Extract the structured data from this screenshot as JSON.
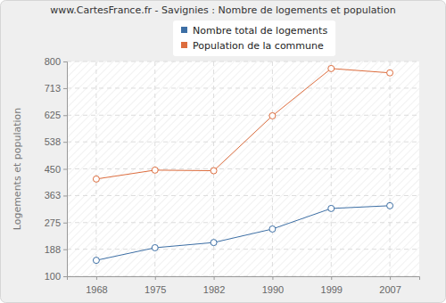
{
  "chart_data": {
    "type": "line",
    "title": "www.CartesFrance.fr - Savignies : Nombre de logements et population",
    "y_label": "Logements et population",
    "categories": [
      "1968",
      "1975",
      "1982",
      "1990",
      "1999",
      "2007"
    ],
    "series": [
      {
        "name": "Nombre total de logements",
        "color": "#3d6fa5",
        "marker": "circle",
        "values": [
          152,
          193,
          210,
          254,
          321,
          330
        ]
      },
      {
        "name": "Population de la commune",
        "color": "#dd6d3e",
        "marker": "circle",
        "values": [
          417,
          446,
          444,
          623,
          777,
          763
        ]
      }
    ],
    "ylim": [
      100,
      800
    ],
    "yticks": [
      100,
      188,
      275,
      363,
      450,
      538,
      625,
      713,
      800
    ],
    "grid": true,
    "legend": "top"
  }
}
